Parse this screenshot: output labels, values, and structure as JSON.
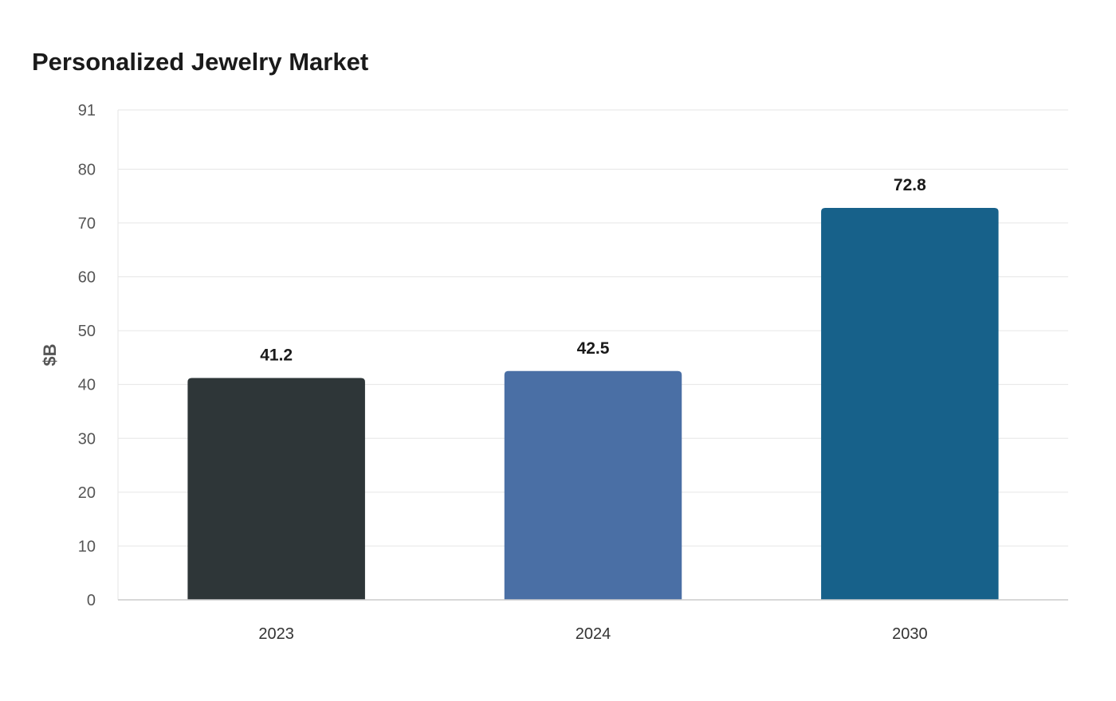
{
  "chart_data": {
    "type": "bar",
    "title": "Personalized Jewelry Market",
    "xlabel": "",
    "ylabel": "$B",
    "ylim": [
      0,
      91
    ],
    "yticks": [
      0,
      10,
      20,
      30,
      40,
      50,
      60,
      70,
      80,
      91
    ],
    "categories": [
      "2023",
      "2024",
      "2030"
    ],
    "values": [
      41.2,
      42.5,
      72.8
    ],
    "data_labels": [
      "41.2",
      "42.5",
      "72.8"
    ],
    "colors": [
      "#2e3638",
      "#4a6fa5",
      "#17618a"
    ],
    "grid": true,
    "legend": "none"
  }
}
